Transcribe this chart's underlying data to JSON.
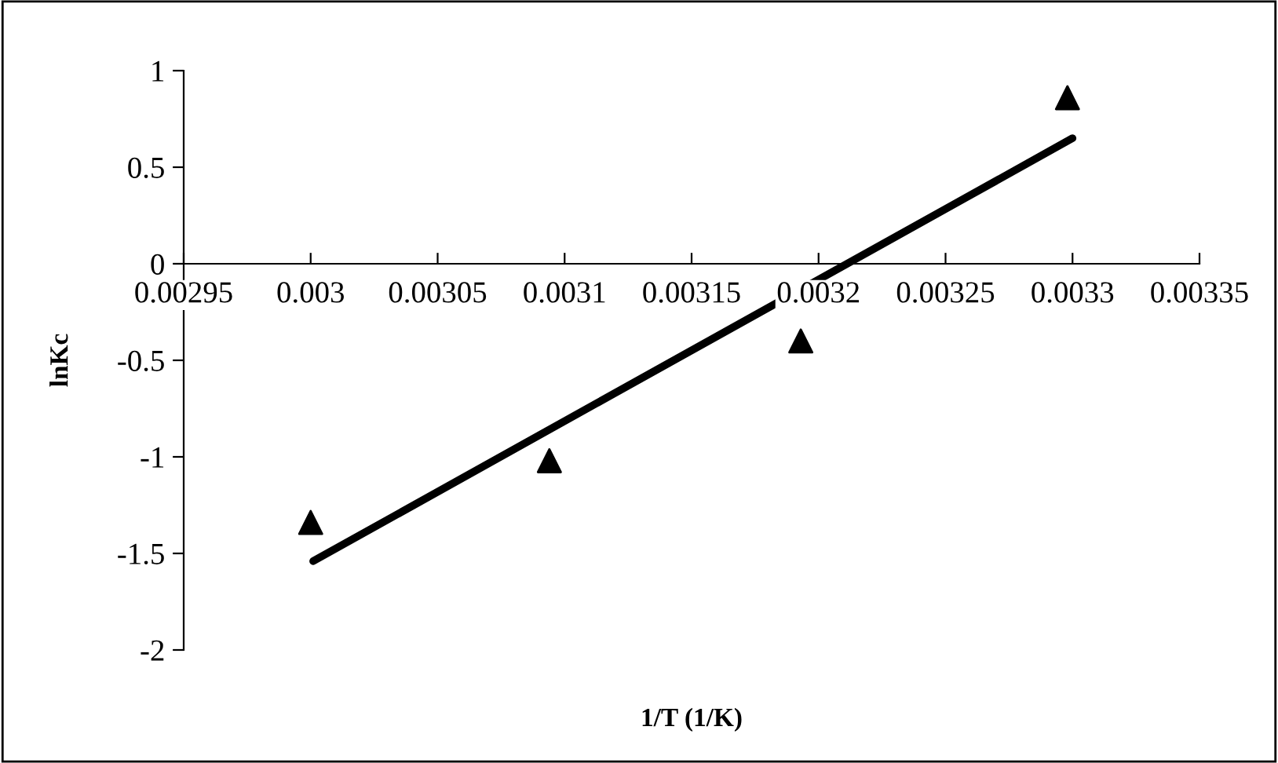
{
  "chart_data": {
    "type": "scatter",
    "xlabel": "1/T (1/K)",
    "ylabel": "lnKc",
    "xlim": [
      0.00295,
      0.00335
    ],
    "xticks": [
      0.00295,
      0.003,
      0.00305,
      0.0031,
      0.00315,
      0.0032,
      0.00325,
      0.0033,
      0.00335
    ],
    "ylim": [
      -2,
      1
    ],
    "yticks": [
      -2,
      -1.5,
      -1,
      -0.5,
      0,
      0.5,
      1
    ],
    "grid": false,
    "legend": false,
    "marker": "triangle",
    "series": [
      {
        "color": "#000000",
        "x": [
          0.003,
          0.003094,
          0.003193,
          0.003298
        ],
        "values": [
          -1.34,
          -1.02,
          -0.4,
          0.86
        ]
      },
      {
        "type": "line",
        "color": "#000000",
        "marker": "none",
        "line_style": "solid",
        "x": [
          0.003001,
          0.0033
        ],
        "values": [
          -1.54,
          0.65
        ]
      }
    ]
  }
}
